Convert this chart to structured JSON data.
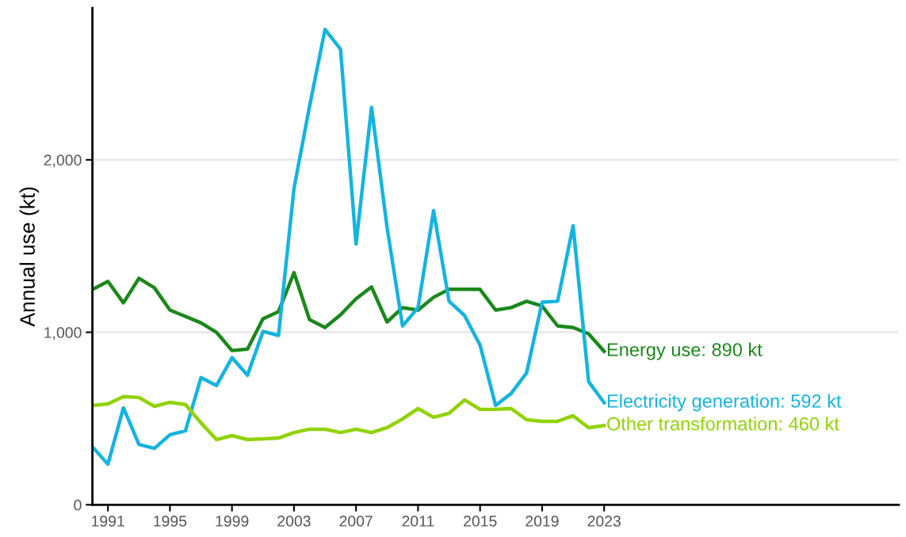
{
  "chart_data": {
    "type": "line",
    "ylabel": "Annual use (kt)",
    "x": [
      1990,
      1991,
      1992,
      1993,
      1994,
      1995,
      1996,
      1997,
      1998,
      1999,
      2000,
      2001,
      2002,
      2003,
      2004,
      2005,
      2006,
      2007,
      2008,
      2009,
      2010,
      2011,
      2012,
      2013,
      2014,
      2015,
      2016,
      2017,
      2018,
      2019,
      2020,
      2021,
      2022,
      2023
    ],
    "series": [
      {
        "color": "#1a881a",
        "values": [
          1249,
          1295,
          1171,
          1313,
          1258,
          1129,
          1092,
          1055,
          1000,
          894,
          903,
          1078,
          1120,
          1346,
          1074,
          1028,
          1101,
          1194,
          1263,
          1060,
          1143,
          1129,
          1203,
          1249,
          1249,
          1249,
          1129,
          1143,
          1180,
          1152,
          1037,
          1028,
          991,
          890
        ]
      },
      {
        "color": "#14b4e0",
        "values": [
          336,
          235,
          562,
          350,
          327,
          406,
          429,
          737,
          691,
          853,
          751,
          1005,
          982,
          1834,
          2309,
          2756,
          2641,
          1512,
          2304,
          1610,
          1037,
          1143,
          1705,
          1180,
          1097,
          926,
          576,
          645,
          765,
          1175,
          1180,
          1618,
          714,
          592
        ]
      },
      {
        "color": "#8fd400",
        "values": [
          576,
          585,
          627,
          622,
          571,
          594,
          581,
          475,
          378,
          401,
          378,
          382,
          387,
          419,
          438,
          438,
          419,
          438,
          419,
          447,
          498,
          558,
          507,
          530,
          608,
          553,
          553,
          558,
          493,
          484,
          484,
          516,
          447,
          460
        ]
      }
    ],
    "annotations": [
      "Energy use: 890 kt",
      "Electricity generation: 592 kt",
      "Other transformation: 460 kt"
    ],
    "xlim": [
      1990,
      2042
    ],
    "xticks": [
      1991,
      1995,
      1999,
      2003,
      2007,
      2011,
      2015,
      2019,
      2023
    ],
    "ylim": [
      0,
      2880
    ],
    "yticks": [
      {
        "value": 0,
        "label": "0"
      },
      {
        "value": 1000,
        "label": "1,000"
      },
      {
        "value": 2000,
        "label": "2,000"
      }
    ],
    "grid": "y",
    "line_style": "solid",
    "marker": "none"
  }
}
